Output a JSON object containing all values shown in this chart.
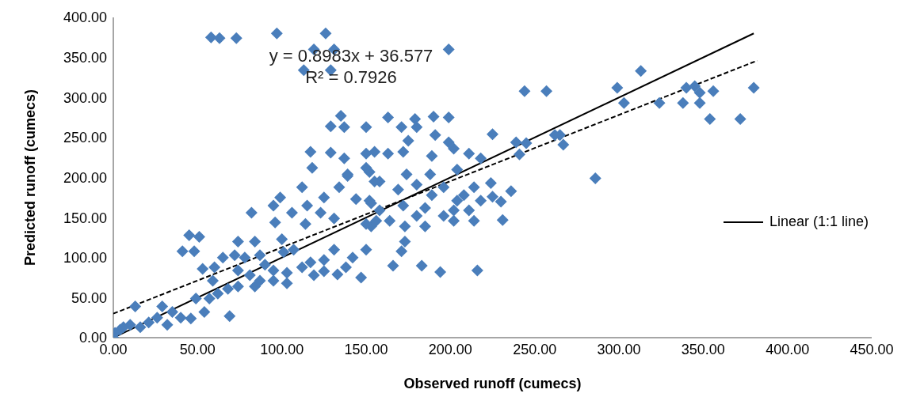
{
  "chart_data": {
    "type": "scatter",
    "xlabel": "Observed runoff (cumecs)",
    "ylabel": "Predicted runoff (cumecs)",
    "annotations": [
      "y = 0.8983x + 36.577",
      "R² = 0.7926"
    ],
    "xlim": [
      0,
      450
    ],
    "ylim": [
      0,
      400
    ],
    "xticks": [
      {
        "value": 0,
        "label": "0.00"
      },
      {
        "value": 50,
        "label": "50.00"
      },
      {
        "value": 100,
        "label": "100.00"
      },
      {
        "value": 150,
        "label": "150.00"
      },
      {
        "value": 200,
        "label": "200.00"
      },
      {
        "value": 250,
        "label": "250.00"
      },
      {
        "value": 300,
        "label": "300.00"
      },
      {
        "value": 350,
        "label": "350.00"
      },
      {
        "value": 400,
        "label": "400.00"
      },
      {
        "value": 450,
        "label": "450.00"
      }
    ],
    "yticks": [
      {
        "value": 0,
        "label": "0.00"
      },
      {
        "value": 50,
        "label": "50.00"
      },
      {
        "value": 100,
        "label": "100.00"
      },
      {
        "value": 150,
        "label": "150.00"
      },
      {
        "value": 200,
        "label": "200.00"
      },
      {
        "value": 250,
        "label": "250.00"
      },
      {
        "value": 300,
        "label": "300.00"
      },
      {
        "value": 350,
        "label": "350.00"
      },
      {
        "value": 400,
        "label": "400.00"
      }
    ],
    "grid": false,
    "legend": "right",
    "series": [
      {
        "color": "#4a7ebb",
        "marker": "diamond",
        "x": [
          58,
          63,
          73,
          97,
          126,
          119,
          131,
          113,
          129,
          199,
          244,
          257,
          299,
          313,
          303,
          324,
          340,
          345,
          348,
          356,
          338,
          348,
          354,
          372,
          380,
          286,
          265,
          267,
          262,
          239,
          245,
          241,
          236,
          230,
          231,
          225,
          214,
          216,
          194,
          183,
          166,
          147,
          163,
          179,
          190,
          199,
          150,
          171,
          180,
          191,
          175,
          199,
          202,
          155,
          163,
          172,
          189,
          211,
          218,
          174,
          188,
          204,
          152,
          158,
          169,
          180,
          196,
          214,
          224,
          189,
          204,
          218,
          152,
          172,
          164,
          180,
          196,
          202,
          153,
          173,
          185,
          173,
          171,
          225,
          135,
          129,
          137,
          117,
          129,
          137,
          150,
          118,
          139,
          150,
          82,
          45,
          51,
          41,
          48,
          53,
          13,
          69,
          54,
          46,
          84,
          133,
          125,
          99,
          95,
          112,
          106,
          115,
          96,
          114,
          125,
          134,
          139,
          144,
          131,
          123,
          131,
          74,
          84,
          72,
          78,
          87,
          100,
          101,
          107,
          95,
          103,
          112,
          117,
          119,
          125,
          90,
          81,
          74,
          65,
          60,
          59,
          62,
          57,
          49,
          40,
          35,
          29,
          26,
          21,
          16,
          10,
          6,
          1,
          0,
          4,
          32,
          68,
          74,
          87,
          95,
          103,
          138,
          142,
          150,
          150,
          153,
          155,
          156,
          158,
          185,
          202,
          211,
          208
        ],
        "values": [
          375,
          374,
          374,
          380,
          380,
          360,
          360,
          334,
          334,
          360,
          308,
          308,
          312,
          333,
          293,
          293,
          312,
          314,
          306,
          308,
          293,
          293,
          273,
          273,
          312,
          199,
          253,
          241,
          253,
          244,
          243,
          229,
          183,
          170,
          147,
          254,
          146,
          84,
          82,
          90,
          90,
          75,
          275,
          273,
          276,
          275,
          263,
          263,
          263,
          253,
          246,
          244,
          236,
          232,
          230,
          232,
          227,
          230,
          224,
          204,
          204,
          210,
          207,
          195,
          185,
          191,
          188,
          188,
          193,
          178,
          171,
          171,
          171,
          165,
          146,
          152,
          152,
          146,
          139,
          139,
          139,
          120,
          108,
          176,
          277,
          264,
          263,
          232,
          231,
          224,
          230,
          212,
          204,
          212,
          156,
          128,
          126,
          108,
          108,
          86,
          39,
          27,
          32,
          24,
          64,
          79,
          83,
          175,
          165,
          188,
          156,
          165,
          144,
          142,
          175,
          188,
          202,
          173,
          149,
          156,
          110,
          120,
          120,
          103,
          100,
          103,
          123,
          107,
          110,
          84,
          81,
          88,
          94,
          78,
          97,
          91,
          78,
          84,
          100,
          88,
          71,
          55,
          49,
          49,
          25,
          32,
          39,
          25,
          19,
          13,
          16,
          13,
          6,
          0,
          10,
          16,
          61,
          64,
          71,
          71,
          68,
          88,
          100,
          110,
          142,
          168,
          195,
          146,
          159,
          162,
          159,
          159,
          178
        ]
      },
      {
        "type": "line",
        "name": "Linear (1:1 line)",
        "color": "#000000",
        "marker": "none",
        "line_style": "solid",
        "x": [
          0,
          380
        ],
        "values": [
          0,
          380
        ]
      },
      {
        "type": "line",
        "color": "#000000",
        "marker": "none",
        "line_style": "dashed",
        "x": [
          0,
          382
        ],
        "values": [
          30,
          346
        ]
      }
    ]
  }
}
